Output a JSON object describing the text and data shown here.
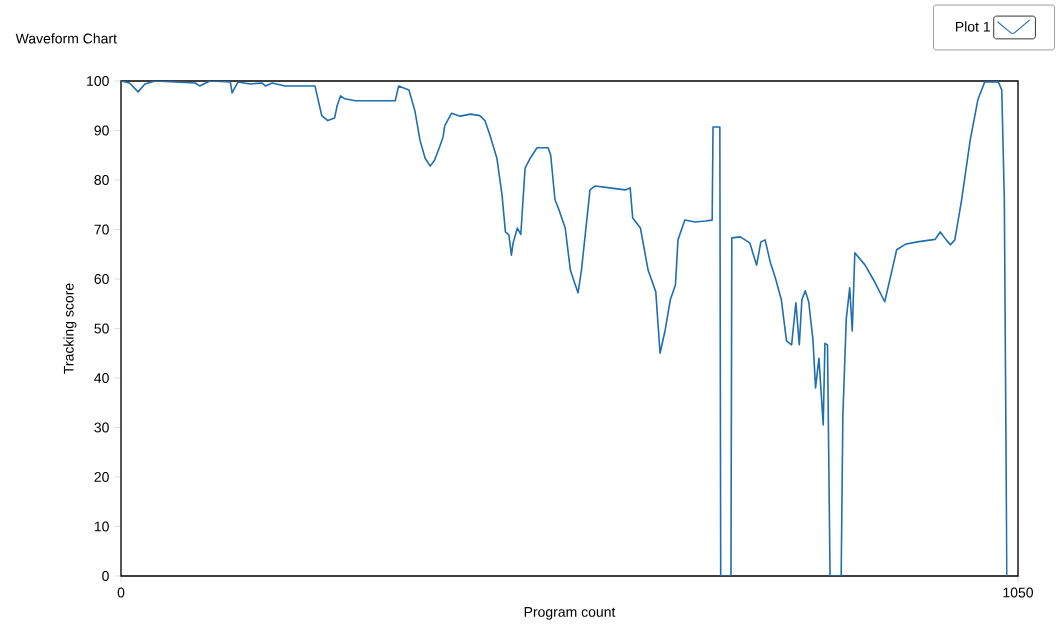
{
  "chart_data": {
    "type": "line",
    "title": "Waveform Chart",
    "xlabel": "Program count",
    "ylabel": "Tracking score",
    "xlim": [
      0,
      1050
    ],
    "xticks": [
      0,
      1050
    ],
    "ylim": [
      0,
      100
    ],
    "yticks": [
      0,
      10,
      20,
      30,
      40,
      50,
      60,
      70,
      80,
      90,
      100
    ],
    "legend": "top right",
    "grid": false,
    "marker": "none",
    "line_style": "solid",
    "series": [
      {
        "name": "Plot 1",
        "color": "#1f6eb0",
        "x": [
          0,
          10,
          20,
          28,
          40,
          87,
          92,
          104,
          128,
          130,
          137,
          151,
          165,
          169,
          177,
          192,
          227,
          231,
          235,
          242,
          250,
          253,
          257,
          262,
          274,
          321,
          325,
          337,
          344,
          350,
          356,
          362,
          367,
          373,
          377,
          379,
          387,
          397,
          409,
          420,
          426,
          432,
          440,
          446,
          450,
          454,
          457,
          459,
          464,
          468,
          473,
          479,
          487,
          500,
          503,
          508,
          512,
          520,
          526,
          531,
          535,
          539,
          549,
          555,
          572,
          590,
          596,
          599,
          608,
          617,
          626,
          631,
          637,
          643,
          649,
          652,
          660,
          672,
          684,
          692,
          693,
          701,
          702,
          714,
          715,
          725,
          736,
          744,
          749,
          754,
          760,
          766,
          773,
          779,
          785,
          790,
          794,
          797,
          801,
          805,
          810,
          813,
          817,
          822,
          824,
          827,
          830,
          843,
          845,
          849,
          853,
          856,
          859,
          871,
          881,
          894,
          902,
          908,
          918,
          932,
          953,
          959,
          966,
          971,
          976,
          980,
          984,
          994,
          1003,
          1011,
          1027,
          1031,
          1034,
          1037
        ],
        "values": [
          100,
          99.6,
          97.8,
          99.4,
          100,
          99.6,
          99,
          100,
          99.8,
          97.6,
          99.8,
          99.4,
          99.6,
          99,
          99.6,
          99,
          99,
          96,
          93,
          92,
          92.5,
          95,
          97,
          96.4,
          96,
          96,
          99,
          98.2,
          94,
          88,
          84.4,
          82.8,
          84,
          86.7,
          88.7,
          91,
          93.5,
          92.9,
          93.3,
          93,
          92,
          89,
          84.4,
          77,
          69.5,
          68.9,
          64.8,
          67.3,
          70.3,
          69,
          82.4,
          84.4,
          86.5,
          86.5,
          85,
          76,
          74.3,
          70.3,
          61.8,
          59.2,
          57.2,
          61.8,
          78,
          78.8,
          78.4,
          78,
          78.4,
          72.3,
          70.3,
          61.8,
          57.4,
          45,
          49.7,
          55.8,
          58.8,
          67.9,
          71.9,
          71.5,
          71.7,
          71.9,
          90.7,
          90.7,
          0,
          0,
          68.3,
          68.5,
          67.3,
          62.8,
          67.5,
          67.9,
          63.4,
          60.2,
          55.8,
          47.5,
          46.7,
          55.2,
          46.7,
          55.8,
          57.6,
          55.4,
          47.7,
          38,
          44,
          30.5,
          47,
          46.7,
          0,
          0,
          32.5,
          52,
          58.2,
          49.5,
          65.3,
          62.8,
          59.8,
          55.4,
          61.4,
          65.9,
          67,
          67.5,
          68,
          69.5,
          67.9,
          66.9,
          67.9,
          71.9,
          76,
          88,
          96.2,
          99.8,
          99.8,
          98.2,
          76,
          0
        ]
      }
    ]
  }
}
